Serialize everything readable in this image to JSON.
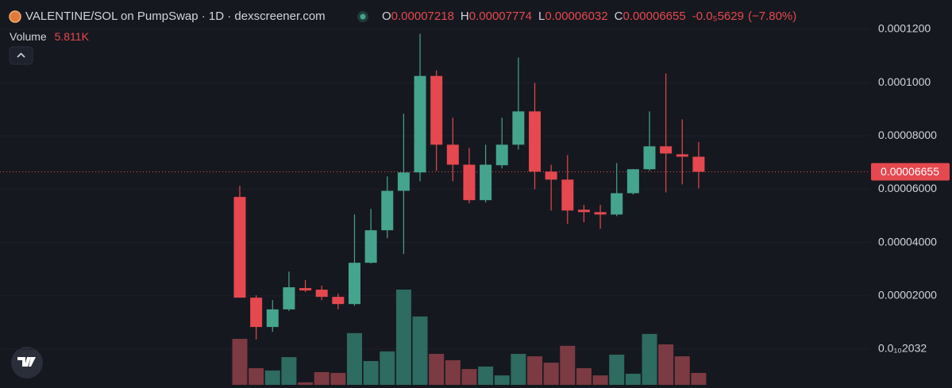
{
  "chart_data": {
    "type": "candlestick",
    "title": "VALENTINE/SOL on PumpSwap · 1D · dexscreener.com",
    "ohlc_readout": [
      {
        "key": "O",
        "value": 7.218e-05,
        "label": "0.00007218"
      },
      {
        "key": "H",
        "value": 7.774e-05,
        "label": "0.00007774"
      },
      {
        "key": "L",
        "value": 6.032e-05,
        "label": "0.00006032"
      },
      {
        "key": "C",
        "value": 6.655e-05,
        "label": "0.00006655"
      }
    ],
    "change": {
      "value": -5.629e-06,
      "label": "-0.0₅5629",
      "pct": -7.8,
      "pct_label": "(−7.80%)"
    },
    "last_price": {
      "value": 6.655e-05,
      "label": "0.00006655"
    },
    "up_color": "#45a48e",
    "down_color": "#e5484f",
    "open": [
      5.71e-05,
      1.93e-05,
      8.3e-06,
      1.49e-05,
      2.29e-05,
      2.23e-05,
      1.96e-05,
      1.69e-05,
      3.24e-05,
      4.46e-05,
      5.94e-05,
      6.63e-05,
      0.0001025,
      7.67e-05,
      6.92e-05,
      5.59e-05,
      6.9e-05,
      7.67e-05,
      8.92e-05,
      6.66e-05,
      6.36e-05,
      5.23e-05,
      5.14e-05,
      5.05e-05,
      5.85e-05,
      6.75e-05,
      7.61e-05,
      7.31e-05,
      7.218e-05
    ],
    "high": [
      6.12e-05,
      2.02e-05,
      1.84e-05,
      2.91e-05,
      2.59e-05,
      2.38e-05,
      2.08e-05,
      5.05e-05,
      5.26e-05,
      6.48e-05,
      8.83e-05,
      0.0001183,
      0.0001046,
      8.68e-05,
      7.55e-05,
      7.67e-05,
      8.68e-05,
      0.0001094,
      9.99e-05,
      6.92e-05,
      7.28e-05,
      5.41e-05,
      5.41e-05,
      6.98e-05,
      6.75e-05,
      8.92e-05,
      0.0001034,
      8.62e-05,
      7.774e-05
    ],
    "low": [
      1.93e-05,
      3.6e-06,
      6.5e-06,
      1.43e-05,
      2.14e-05,
      1.84e-05,
      1.49e-05,
      1.63e-05,
      3.21e-05,
      4.16e-05,
      3.57e-05,
      6.3e-05,
      6.69e-05,
      6.3e-05,
      5.47e-05,
      5.5e-05,
      6.78e-05,
      7.49e-05,
      6e-05,
      5.2e-05,
      4.7e-05,
      4.76e-05,
      4.52e-05,
      4.99e-05,
      5.8e-05,
      6.69e-05,
      5.88e-05,
      6.18e-05,
      6.032e-05
    ],
    "close": [
      1.93e-05,
      8.3e-06,
      1.49e-05,
      2.32e-05,
      2.2e-05,
      1.96e-05,
      1.69e-05,
      3.24e-05,
      4.46e-05,
      5.94e-05,
      6.63e-05,
      0.0001025,
      7.67e-05,
      6.92e-05,
      5.59e-05,
      6.92e-05,
      7.67e-05,
      8.92e-05,
      6.66e-05,
      6.36e-05,
      5.2e-05,
      5.14e-05,
      5.05e-05,
      5.85e-05,
      6.75e-05,
      7.61e-05,
      7.34e-05,
      7.22e-05,
      6.655e-05
    ],
    "volume": {
      "name": "Volume",
      "up_color": "#2e6b60",
      "down_color": "#7c3a42",
      "values": [
        22400,
        8100,
        7000,
        13500,
        1200,
        6200,
        5800,
        25200,
        11600,
        16300,
        46400,
        33300,
        15100,
        12000,
        7700,
        8900,
        4600,
        15100,
        13900,
        10800,
        19000,
        8100,
        4600,
        14700,
        5400,
        24800,
        19700,
        13900,
        5811
      ],
      "value_labels": [
        null,
        null,
        null,
        null,
        null,
        null,
        null,
        null,
        null,
        null,
        null,
        null,
        null,
        null,
        null,
        null,
        null,
        null,
        null,
        null,
        null,
        null,
        null,
        null,
        null,
        null,
        null,
        null,
        "5.811K"
      ]
    },
    "ylim": [
      -1.46e-05,
      0.000131
    ],
    "yticks": [
      {
        "value": 0.00012,
        "label": "0.0001200"
      },
      {
        "value": 0.0001,
        "label": "0.0001000"
      },
      {
        "value": 8e-05,
        "label": "0.00008000"
      },
      {
        "value": 6e-05,
        "label": "0.00006000"
      },
      {
        "value": 4e-05,
        "label": "0.00004000"
      },
      {
        "value": 2e-05,
        "label": "0.00002000"
      },
      {
        "value": 2.032e-11,
        "label": "0.0₁₀2032"
      }
    ],
    "grid": true
  }
}
